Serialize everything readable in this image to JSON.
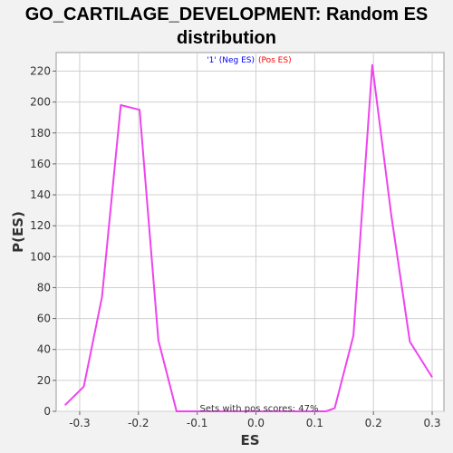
{
  "chart_data": {
    "type": "line",
    "title_line1": "GO_CARTILAGE_DEVELOPMENT: Random ES",
    "title_line2": "distribution",
    "xlabel": "ES",
    "ylabel": "P(ES)",
    "xlim": [
      -0.34,
      0.32
    ],
    "ylim": [
      0,
      232
    ],
    "x_ticks": [
      -0.3,
      -0.2,
      -0.1,
      0.0,
      0.1,
      0.2,
      0.3
    ],
    "x_tick_labels": [
      "-0.3",
      "-0.2",
      "-0.1",
      "0.0",
      "0.1",
      "0.2",
      "0.3"
    ],
    "y_ticks": [
      0,
      20,
      40,
      60,
      80,
      100,
      120,
      140,
      160,
      180,
      200,
      220
    ],
    "y_tick_labels": [
      "0",
      "20",
      "40",
      "60",
      "80",
      "100",
      "120",
      "140",
      "160",
      "180",
      "200",
      "220"
    ],
    "legend": {
      "neg": "'1' (Neg ES)",
      "pos": "(Pos ES)",
      "neg_color": "#0000ff",
      "pos_color": "#ff0000"
    },
    "annotation": "Sets with pos scores: 47%",
    "series": [
      {
        "color": "#ee44ee",
        "x": [
          -0.325,
          -0.293,
          -0.262,
          -0.23,
          -0.198,
          -0.166,
          -0.135,
          -0.103,
          -0.071,
          -0.04,
          -0.008,
          0.024,
          0.056,
          0.088,
          0.119,
          0.134,
          0.166,
          0.198,
          0.23,
          0.262,
          0.3
        ],
        "y": [
          4,
          16,
          74,
          198,
          195,
          46,
          0,
          0,
          0,
          0,
          0,
          0,
          0,
          0,
          0,
          2,
          49,
          224,
          128,
          45,
          22
        ]
      }
    ],
    "grid": true,
    "legend_position": "top-center"
  }
}
